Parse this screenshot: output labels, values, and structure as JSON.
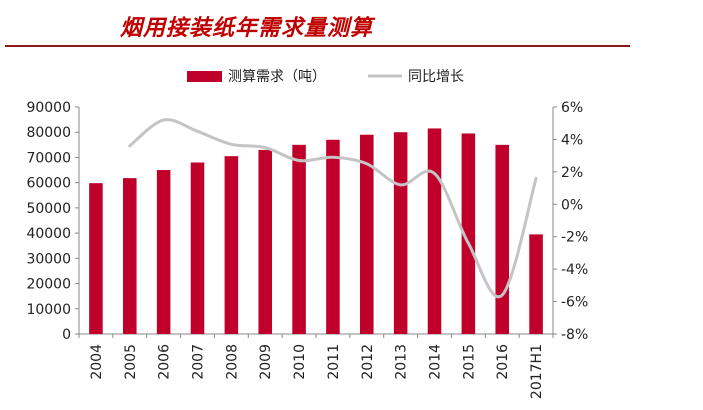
{
  "title": "烟用接装纸年需求量测算",
  "chart_data": {
    "type": "bar",
    "title": "烟用接装纸年需求量测算",
    "categories": [
      "2004",
      "2005",
      "2006",
      "2007",
      "2008",
      "2009",
      "2010",
      "2011",
      "2012",
      "2013",
      "2014",
      "2015",
      "2016",
      "2017H1"
    ],
    "series": [
      {
        "name": "测算需求（吨）",
        "type": "bar",
        "axis": "left",
        "color": "#c0002a",
        "values": [
          59800,
          61800,
          65000,
          68000,
          70500,
          73000,
          75000,
          77000,
          79000,
          80000,
          81500,
          79500,
          75000,
          39500
        ]
      },
      {
        "name": "同比增长",
        "type": "line",
        "axis": "right",
        "color": "#c4c4c4",
        "values": [
          null,
          3.6,
          5.2,
          4.5,
          3.7,
          3.5,
          2.7,
          2.9,
          2.5,
          1.2,
          1.9,
          -2.4,
          -5.6,
          1.6
        ]
      }
    ],
    "y_left": {
      "min": 0,
      "max": 90000,
      "ticks": [
        0,
        10000,
        20000,
        30000,
        40000,
        50000,
        60000,
        70000,
        80000,
        90000
      ]
    },
    "y_right": {
      "min": -8,
      "max": 6,
      "ticks": [
        -8,
        -6,
        -4,
        -2,
        0,
        2,
        4,
        6
      ],
      "tick_labels": [
        "-8%",
        "-6%",
        "-4%",
        "-2%",
        "0%",
        "2%",
        "4%",
        "6%"
      ]
    },
    "legend_position": "top",
    "grid": false
  }
}
